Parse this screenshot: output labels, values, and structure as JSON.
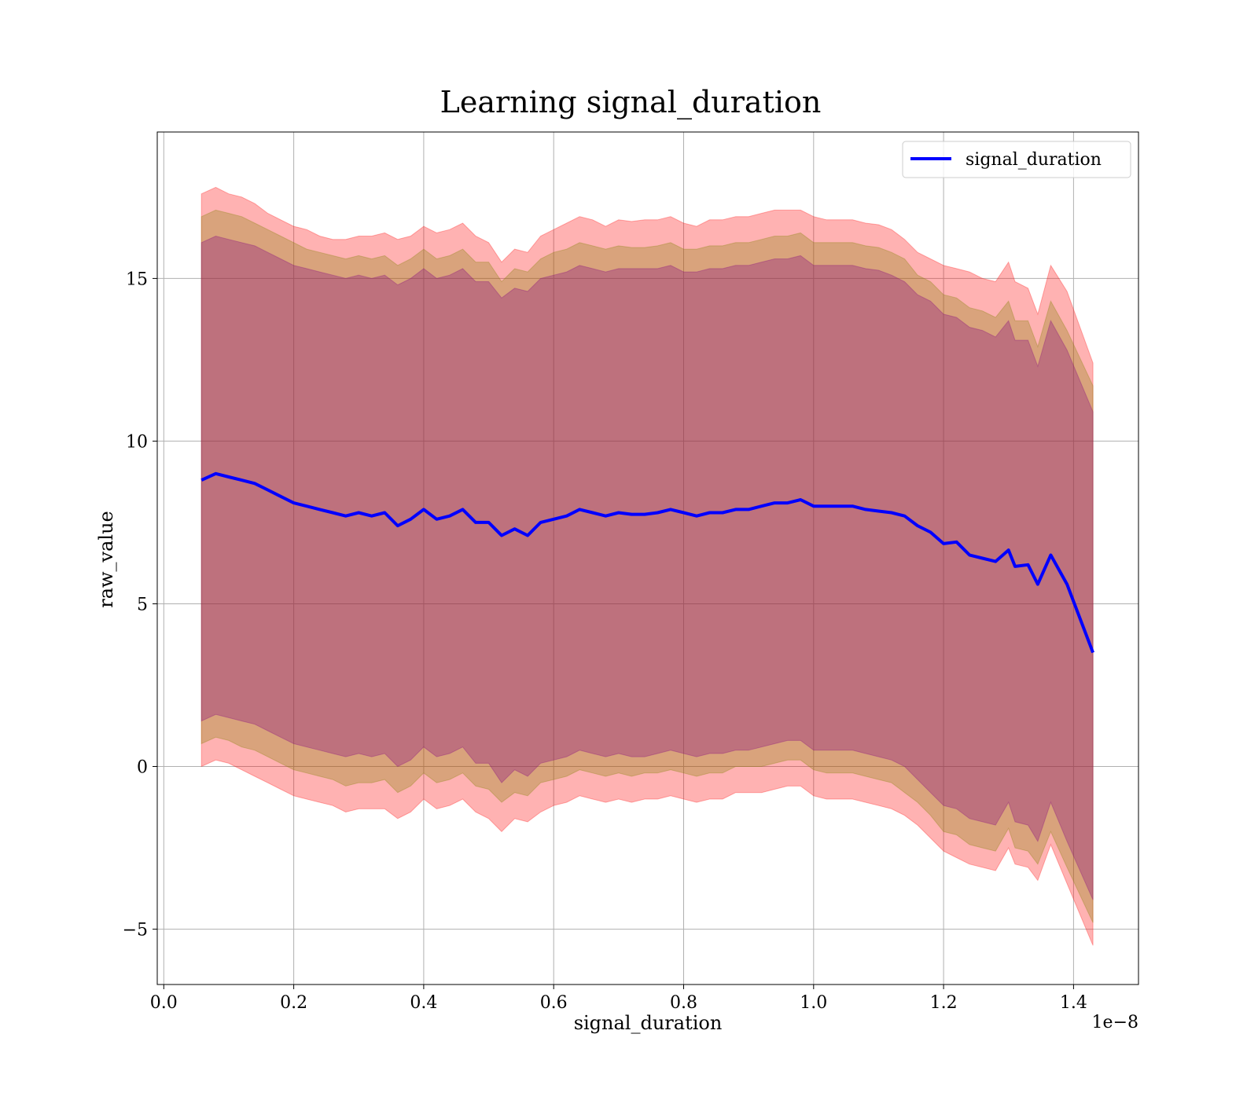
{
  "chart_data": {
    "type": "area",
    "title": "Learning signal_duration",
    "xlabel": "signal_duration",
    "ylabel": "raw_value",
    "x_offset_label": "1e−8",
    "xlim": [
      -0.01,
      1.5
    ],
    "ylim": [
      -6.7,
      19.5
    ],
    "x_ticks": [
      0.0,
      0.2,
      0.4,
      0.6,
      0.8,
      1.0,
      1.2,
      1.4
    ],
    "x_tick_labels": [
      "0.0",
      "0.2",
      "0.4",
      "0.6",
      "0.8",
      "1.0",
      "1.2",
      "1.4"
    ],
    "y_ticks": [
      -5,
      0,
      5,
      10,
      15
    ],
    "y_tick_labels": [
      "−5",
      "0",
      "5",
      "10",
      "15"
    ],
    "grid": true,
    "legend": {
      "position": "top-right",
      "entries": [
        {
          "name": "signal_duration",
          "color": "#0000ff"
        }
      ]
    },
    "x": [
      0.058,
      0.08,
      0.1,
      0.12,
      0.14,
      0.16,
      0.18,
      0.2,
      0.22,
      0.24,
      0.26,
      0.28,
      0.3,
      0.32,
      0.34,
      0.36,
      0.38,
      0.4,
      0.42,
      0.44,
      0.46,
      0.48,
      0.5,
      0.52,
      0.54,
      0.56,
      0.58,
      0.6,
      0.62,
      0.64,
      0.66,
      0.68,
      0.7,
      0.72,
      0.74,
      0.76,
      0.78,
      0.8,
      0.82,
      0.84,
      0.86,
      0.88,
      0.9,
      0.92,
      0.94,
      0.96,
      0.98,
      1.0,
      1.02,
      1.04,
      1.06,
      1.08,
      1.1,
      1.12,
      1.14,
      1.16,
      1.18,
      1.2,
      1.22,
      1.24,
      1.26,
      1.28,
      1.3,
      1.31,
      1.33,
      1.345,
      1.365,
      1.39,
      1.43
    ],
    "series": [
      {
        "name": "signal_duration",
        "color": "#0000ff",
        "values": [
          8.8,
          9.0,
          8.9,
          8.8,
          8.7,
          8.5,
          8.3,
          8.1,
          8.0,
          7.9,
          7.8,
          7.7,
          7.8,
          7.7,
          7.8,
          7.4,
          7.6,
          7.9,
          7.6,
          7.7,
          7.9,
          7.5,
          7.5,
          7.1,
          7.3,
          7.1,
          7.5,
          7.6,
          7.7,
          7.9,
          7.8,
          7.7,
          7.8,
          7.75,
          7.75,
          7.8,
          7.9,
          7.8,
          7.7,
          7.8,
          7.8,
          7.9,
          7.9,
          8.0,
          8.1,
          8.1,
          8.2,
          8.0,
          8.0,
          8.0,
          8.0,
          7.9,
          7.85,
          7.8,
          7.7,
          7.4,
          7.2,
          6.85,
          6.9,
          6.5,
          6.4,
          6.3,
          6.65,
          6.15,
          6.2,
          5.6,
          6.5,
          5.6,
          3.5
        ]
      }
    ],
    "bands": [
      {
        "color": "#ff0000",
        "opacity": 0.3,
        "upper": [
          17.6,
          17.8,
          17.6,
          17.5,
          17.3,
          17.0,
          16.8,
          16.6,
          16.5,
          16.3,
          16.2,
          16.2,
          16.3,
          16.3,
          16.4,
          16.2,
          16.3,
          16.6,
          16.4,
          16.5,
          16.7,
          16.3,
          16.1,
          15.5,
          15.9,
          15.8,
          16.3,
          16.5,
          16.7,
          16.9,
          16.8,
          16.6,
          16.8,
          16.75,
          16.8,
          16.8,
          16.9,
          16.7,
          16.6,
          16.8,
          16.8,
          16.9,
          16.9,
          17.0,
          17.1,
          17.1,
          17.1,
          16.9,
          16.8,
          16.8,
          16.8,
          16.7,
          16.65,
          16.5,
          16.2,
          15.8,
          15.6,
          15.4,
          15.3,
          15.2,
          15.0,
          14.9,
          15.5,
          14.9,
          14.7,
          13.9,
          15.4,
          14.6,
          12.4
        ],
        "lower": [
          0.0,
          0.2,
          0.1,
          -0.1,
          -0.3,
          -0.5,
          -0.7,
          -0.9,
          -1.0,
          -1.1,
          -1.2,
          -1.4,
          -1.3,
          -1.3,
          -1.3,
          -1.6,
          -1.4,
          -1.0,
          -1.3,
          -1.2,
          -1.0,
          -1.4,
          -1.6,
          -2.0,
          -1.6,
          -1.7,
          -1.4,
          -1.2,
          -1.1,
          -0.9,
          -1.0,
          -1.1,
          -1.0,
          -1.1,
          -1.0,
          -1.0,
          -0.9,
          -1.0,
          -1.1,
          -1.0,
          -1.0,
          -0.8,
          -0.8,
          -0.8,
          -0.7,
          -0.6,
          -0.6,
          -0.9,
          -1.0,
          -1.0,
          -1.0,
          -1.1,
          -1.2,
          -1.3,
          -1.5,
          -1.8,
          -2.2,
          -2.6,
          -2.8,
          -3.0,
          -3.1,
          -3.2,
          -2.5,
          -3.0,
          -3.1,
          -3.5,
          -2.4,
          -3.6,
          -5.5
        ]
      },
      {
        "color": "#808000",
        "opacity": 0.3,
        "upper": [
          16.9,
          17.1,
          17.0,
          16.9,
          16.7,
          16.5,
          16.3,
          16.1,
          15.9,
          15.8,
          15.7,
          15.6,
          15.7,
          15.6,
          15.7,
          15.4,
          15.6,
          15.9,
          15.6,
          15.7,
          15.9,
          15.5,
          15.5,
          14.9,
          15.3,
          15.2,
          15.6,
          15.8,
          15.9,
          16.1,
          16.0,
          15.9,
          16.0,
          15.95,
          15.95,
          16.0,
          16.1,
          15.9,
          15.9,
          16.0,
          16.0,
          16.1,
          16.1,
          16.2,
          16.3,
          16.3,
          16.4,
          16.1,
          16.1,
          16.1,
          16.1,
          16.0,
          15.95,
          15.8,
          15.6,
          15.1,
          14.9,
          14.5,
          14.4,
          14.1,
          14.0,
          13.8,
          14.3,
          13.7,
          13.7,
          12.9,
          14.3,
          13.4,
          11.7
        ],
        "lower": [
          0.7,
          0.9,
          0.8,
          0.6,
          0.5,
          0.3,
          0.1,
          -0.1,
          -0.2,
          -0.3,
          -0.4,
          -0.6,
          -0.5,
          -0.5,
          -0.4,
          -0.8,
          -0.6,
          -0.2,
          -0.5,
          -0.4,
          -0.2,
          -0.6,
          -0.7,
          -1.1,
          -0.8,
          -0.9,
          -0.5,
          -0.4,
          -0.3,
          -0.1,
          -0.2,
          -0.3,
          -0.2,
          -0.3,
          -0.2,
          -0.2,
          -0.1,
          -0.2,
          -0.3,
          -0.2,
          -0.2,
          0.0,
          0.0,
          0.0,
          0.1,
          0.2,
          0.2,
          -0.1,
          -0.2,
          -0.2,
          -0.2,
          -0.3,
          -0.4,
          -0.5,
          -0.8,
          -1.1,
          -1.5,
          -2.0,
          -2.1,
          -2.4,
          -2.5,
          -2.6,
          -1.9,
          -2.5,
          -2.6,
          -3.0,
          -2.0,
          -3.1,
          -4.8
        ]
      },
      {
        "color": "#800080",
        "opacity": 0.3,
        "upper": [
          16.1,
          16.3,
          16.2,
          16.1,
          16.0,
          15.8,
          15.6,
          15.4,
          15.3,
          15.2,
          15.1,
          15.0,
          15.1,
          15.0,
          15.1,
          14.8,
          15.0,
          15.3,
          15.0,
          15.1,
          15.3,
          14.9,
          14.9,
          14.4,
          14.7,
          14.6,
          15.0,
          15.1,
          15.2,
          15.4,
          15.3,
          15.2,
          15.3,
          15.3,
          15.3,
          15.3,
          15.4,
          15.2,
          15.2,
          15.3,
          15.3,
          15.4,
          15.4,
          15.5,
          15.6,
          15.6,
          15.7,
          15.4,
          15.4,
          15.4,
          15.4,
          15.3,
          15.25,
          15.1,
          14.9,
          14.5,
          14.3,
          13.9,
          13.8,
          13.5,
          13.4,
          13.2,
          13.7,
          13.1,
          13.1,
          12.3,
          13.7,
          12.8,
          10.9
        ],
        "lower": [
          1.4,
          1.6,
          1.5,
          1.4,
          1.3,
          1.1,
          0.9,
          0.7,
          0.6,
          0.5,
          0.4,
          0.3,
          0.4,
          0.3,
          0.4,
          0.0,
          0.2,
          0.6,
          0.3,
          0.4,
          0.6,
          0.1,
          0.1,
          -0.5,
          -0.1,
          -0.3,
          0.1,
          0.2,
          0.3,
          0.5,
          0.4,
          0.3,
          0.4,
          0.3,
          0.3,
          0.4,
          0.5,
          0.4,
          0.3,
          0.4,
          0.4,
          0.5,
          0.5,
          0.6,
          0.7,
          0.8,
          0.8,
          0.5,
          0.5,
          0.5,
          0.5,
          0.4,
          0.3,
          0.2,
          0.0,
          -0.4,
          -0.8,
          -1.2,
          -1.3,
          -1.6,
          -1.7,
          -1.8,
          -1.1,
          -1.7,
          -1.8,
          -2.3,
          -1.1,
          -2.3,
          -4.1
        ]
      }
    ]
  }
}
